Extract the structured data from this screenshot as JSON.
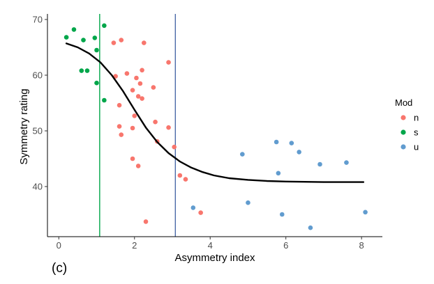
{
  "panel_label": "(c)",
  "chart_data": {
    "type": "scatter",
    "xlabel": "Asymmetry index",
    "ylabel": "Symmetry rating",
    "xlim": [
      -0.3,
      8.55
    ],
    "ylim": [
      31,
      71
    ],
    "x_ticks": [
      0,
      2,
      4,
      6,
      8
    ],
    "y_ticks": [
      40,
      50,
      60,
      70
    ],
    "x_tick_labels": [
      "0",
      "2",
      "4",
      "6",
      "8"
    ],
    "y_tick_labels": [
      "40",
      "50",
      "60",
      "70"
    ],
    "grid": false,
    "legend": {
      "title": "Mod",
      "placement": "right",
      "entries": [
        {
          "label": "n",
          "color": "#F8766D"
        },
        {
          "label": "s",
          "color": "#00A64A"
        },
        {
          "label": "u",
          "color": "#619CCF"
        }
      ]
    },
    "series": [
      {
        "name": "n",
        "color": "#F8766D",
        "points": [
          [
            1.45,
            65.8
          ],
          [
            1.65,
            66.3
          ],
          [
            2.25,
            65.8
          ],
          [
            2.9,
            62.3
          ],
          [
            1.5,
            59.8
          ],
          [
            1.8,
            60.3
          ],
          [
            2.05,
            59.5
          ],
          [
            2.2,
            60.9
          ],
          [
            2.15,
            58.5
          ],
          [
            1.95,
            57.3
          ],
          [
            2.5,
            57.8
          ],
          [
            2.1,
            56.2
          ],
          [
            2.2,
            55.8
          ],
          [
            1.6,
            54.6
          ],
          [
            2.0,
            52.7
          ],
          [
            2.55,
            51.6
          ],
          [
            1.6,
            50.8
          ],
          [
            1.95,
            50.5
          ],
          [
            2.9,
            50.6
          ],
          [
            1.65,
            49.3
          ],
          [
            2.6,
            48.1
          ],
          [
            3.05,
            47.1
          ],
          [
            1.95,
            45.0
          ],
          [
            2.1,
            43.7
          ],
          [
            3.2,
            42.0
          ],
          [
            3.35,
            41.3
          ],
          [
            3.75,
            35.3
          ],
          [
            2.3,
            33.7
          ]
        ]
      },
      {
        "name": "s",
        "color": "#00A64A",
        "points": [
          [
            0.2,
            66.8
          ],
          [
            0.4,
            68.2
          ],
          [
            0.65,
            66.3
          ],
          [
            1.2,
            68.9
          ],
          [
            0.95,
            66.7
          ],
          [
            1.0,
            64.5
          ],
          [
            0.6,
            60.8
          ],
          [
            0.75,
            60.8
          ],
          [
            1.0,
            58.6
          ],
          [
            1.2,
            55.5
          ]
        ]
      },
      {
        "name": "u",
        "color": "#619CCF",
        "points": [
          [
            3.55,
            36.2
          ],
          [
            4.85,
            45.8
          ],
          [
            5.0,
            37.1
          ],
          [
            5.75,
            48.0
          ],
          [
            5.8,
            42.4
          ],
          [
            5.9,
            35.0
          ],
          [
            6.15,
            47.8
          ],
          [
            6.35,
            46.2
          ],
          [
            6.65,
            32.6
          ],
          [
            6.9,
            44.0
          ],
          [
            7.6,
            44.3
          ],
          [
            8.1,
            35.4
          ]
        ]
      }
    ],
    "fitted_curve": {
      "color": "#000000",
      "points": [
        [
          0.2,
          65.7
        ],
        [
          0.5,
          65.0
        ],
        [
          0.8,
          63.9
        ],
        [
          1.1,
          62.3
        ],
        [
          1.4,
          60.0
        ],
        [
          1.7,
          57.1
        ],
        [
          2.0,
          53.8
        ],
        [
          2.3,
          50.6
        ],
        [
          2.6,
          48.0
        ],
        [
          2.9,
          46.0
        ],
        [
          3.2,
          44.5
        ],
        [
          3.5,
          43.4
        ],
        [
          3.8,
          42.6
        ],
        [
          4.1,
          42.0
        ],
        [
          4.5,
          41.5
        ],
        [
          5.0,
          41.2
        ],
        [
          5.5,
          41.0
        ],
        [
          6.0,
          40.9
        ],
        [
          6.5,
          40.85
        ],
        [
          7.0,
          40.8
        ],
        [
          7.5,
          40.8
        ],
        [
          8.05,
          40.8
        ]
      ]
    },
    "vertical_lines": [
      {
        "x": 1.08,
        "color": "#00A64A"
      },
      {
        "x": 3.08,
        "color": "#4A6AA8"
      }
    ]
  }
}
